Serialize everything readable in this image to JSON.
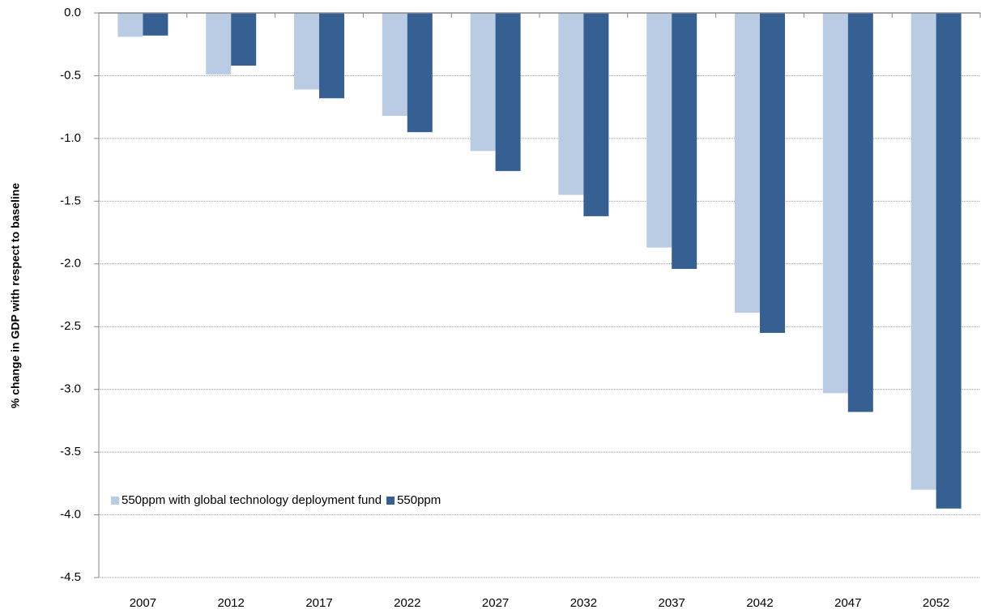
{
  "chart_data": {
    "type": "bar",
    "y_label": "% change in GDP with respect to baseline",
    "categories": [
      "2007",
      "2012",
      "2017",
      "2022",
      "2027",
      "2032",
      "2037",
      "2042",
      "2047",
      "2052"
    ],
    "series": [
      {
        "name": "550ppm with global technology deployment fund",
        "color": "#b9cce4",
        "values": [
          -0.19,
          -0.49,
          -0.61,
          -0.82,
          -1.1,
          -1.45,
          -1.87,
          -2.39,
          -3.03,
          -3.8
        ]
      },
      {
        "name": "550ppm",
        "color": "#366092",
        "values": [
          -0.18,
          -0.42,
          -0.68,
          -0.95,
          -1.26,
          -1.62,
          -2.04,
          -2.55,
          -3.18,
          -3.95
        ]
      }
    ],
    "ylim": [
      0,
      -4.5
    ],
    "yticks": [
      {
        "value": 0,
        "label": "0.0"
      },
      -0.5,
      {
        "value": -1,
        "label": "-1.0"
      },
      -1.5,
      {
        "value": -2,
        "label": "-2.0"
      },
      -2.5,
      {
        "value": -3,
        "label": "-3.0"
      },
      -3.5,
      {
        "value": -4,
        "label": "-4.0"
      },
      -4.5
    ],
    "grid": true,
    "legend": "lower left"
  }
}
